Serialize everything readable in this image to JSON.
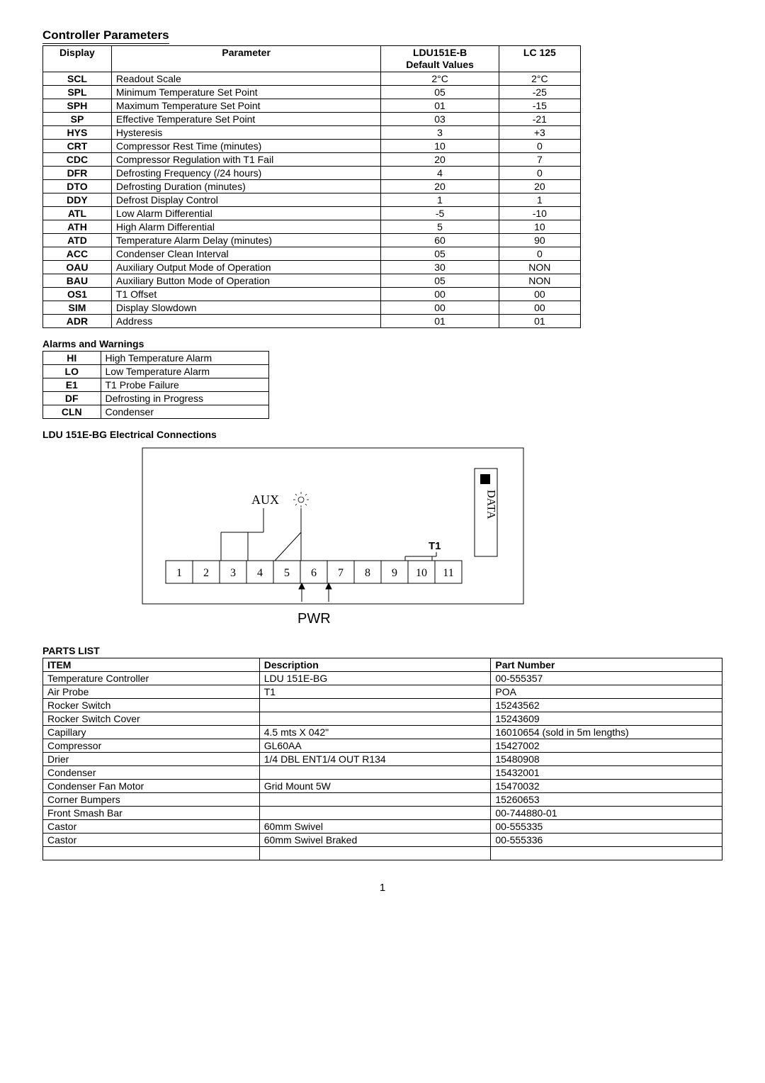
{
  "section_titles": {
    "controller_parameters": "Controller Parameters",
    "alarms_warnings": "Alarms and Warnings",
    "electrical_connections": "LDU 151E-BG Electrical Connections",
    "parts_list": "PARTS LIST"
  },
  "controller_parameters": {
    "headers": {
      "display": "Display",
      "parameter": "Parameter",
      "default_line1": "LDU151E-B",
      "default_line2": "Default Values",
      "lc125": "LC 125"
    },
    "rows": [
      {
        "display": "SCL",
        "parameter": "Readout Scale",
        "default": "2°C",
        "lc125": "2°C"
      },
      {
        "display": "SPL",
        "parameter": "Minimum Temperature Set Point",
        "default": "05",
        "lc125": "-25"
      },
      {
        "display": "SPH",
        "parameter": "Maximum Temperature Set Point",
        "default": "01",
        "lc125": "-15"
      },
      {
        "display": "SP",
        "parameter": "Effective Temperature Set Point",
        "default": "03",
        "lc125": "-21"
      },
      {
        "display": "HYS",
        "parameter": "Hysteresis",
        "default": "3",
        "lc125": "+3"
      },
      {
        "display": "CRT",
        "parameter": "Compressor Rest Time (minutes)",
        "default": "10",
        "lc125": "0"
      },
      {
        "display": "CDC",
        "parameter": "Compressor Regulation with T1 Fail",
        "default": "20",
        "lc125": "7"
      },
      {
        "display": "DFR",
        "parameter": "Defrosting Frequency (/24 hours)",
        "default": "4",
        "lc125": "0"
      },
      {
        "display": "DTO",
        "parameter": "Defrosting Duration (minutes)",
        "default": "20",
        "lc125": "20"
      },
      {
        "display": "DDY",
        "parameter": "Defrost Display Control",
        "default": "1",
        "lc125": "1"
      },
      {
        "display": "ATL",
        "parameter": "Low Alarm Differential",
        "default": "-5",
        "lc125": "-10"
      },
      {
        "display": "ATH",
        "parameter": "High Alarm Differential",
        "default": "5",
        "lc125": "10"
      },
      {
        "display": "ATD",
        "parameter": "Temperature Alarm Delay (minutes)",
        "default": "60",
        "lc125": "90"
      },
      {
        "display": "ACC",
        "parameter": "Condenser Clean Interval",
        "default": "05",
        "lc125": "0"
      },
      {
        "display": "OAU",
        "parameter": "Auxiliary Output Mode of Operation",
        "default": "30",
        "lc125": "NON"
      },
      {
        "display": "BAU",
        "parameter": "Auxiliary Button Mode of Operation",
        "default": "05",
        "lc125": "NON"
      },
      {
        "display": "OS1",
        "parameter": "T1 Offset",
        "default": "00",
        "lc125": "00"
      },
      {
        "display": "SIM",
        "parameter": "Display Slowdown",
        "default": "00",
        "lc125": "00"
      },
      {
        "display": "ADR",
        "parameter": "Address",
        "default": "01",
        "lc125": "01"
      }
    ]
  },
  "alarms": {
    "rows": [
      {
        "code": "HI",
        "desc": "High Temperature Alarm"
      },
      {
        "code": "LO",
        "desc": "Low Temperature Alarm"
      },
      {
        "code": "E1",
        "desc": "T1 Probe Failure"
      },
      {
        "code": "DF",
        "desc": "Defrosting in Progress"
      },
      {
        "code": "CLN",
        "desc": "Condenser"
      }
    ]
  },
  "diagram": {
    "labels": {
      "aux": "AUX",
      "data": "DATA",
      "t1": "T1",
      "pwr": "PWR"
    },
    "terminals": [
      "1",
      "2",
      "3",
      "4",
      "5",
      "6",
      "7",
      "8",
      "9",
      "10",
      "11"
    ],
    "colors": {
      "stroke": "#000000",
      "bg": "#ffffff",
      "data_block_fill": "#000000"
    }
  },
  "parts_list": {
    "headers": {
      "item": "ITEM",
      "desc": "Description",
      "part": "Part Number"
    },
    "rows": [
      {
        "item": "Temperature Controller",
        "desc": "LDU 151E-BG",
        "part": "00-555357"
      },
      {
        "item": "Air Probe",
        "desc": "T1",
        "part": "POA"
      },
      {
        "item": "Rocker Switch",
        "desc": "",
        "part": "15243562"
      },
      {
        "item": "Rocker Switch Cover",
        "desc": "",
        "part": "15243609"
      },
      {
        "item": "Capillary",
        "desc": "4.5 mts X  042\"",
        "part": "16010654  (sold in 5m lengths)"
      },
      {
        "item": "Compressor",
        "desc": "GL60AA",
        "part": "15427002"
      },
      {
        "item": "Drier",
        "desc": "1/4 DBL ENT1/4 OUT R134",
        "part": "15480908"
      },
      {
        "item": "Condenser",
        "desc": "",
        "part": "15432001"
      },
      {
        "item": "Condenser Fan Motor",
        "desc": "Grid Mount 5W",
        "part": "15470032"
      },
      {
        "item": "Corner Bumpers",
        "desc": "",
        "part": "15260653"
      },
      {
        "item": "Front Smash Bar",
        "desc": "",
        "part": "00-744880-01"
      },
      {
        "item": "Castor",
        "desc": "60mm Swivel",
        "part": "00-555335"
      },
      {
        "item": "Castor",
        "desc": "60mm Swivel Braked",
        "part": "00-555336"
      },
      {
        "item": "",
        "desc": "",
        "part": ""
      }
    ]
  },
  "page_number": "1"
}
